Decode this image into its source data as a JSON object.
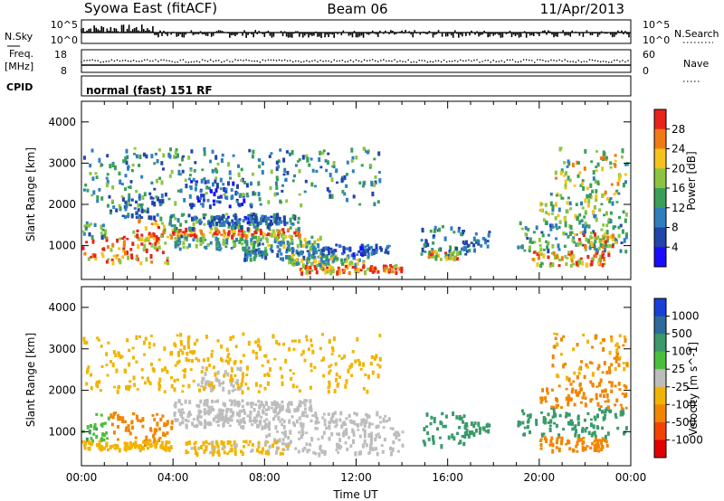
{
  "header": {
    "title": "Syowa East (fitACF)",
    "beam": "Beam 06",
    "date": "11/Apr/2013"
  },
  "top_panels": {
    "nsky_label": "N.Sky",
    "nsky_ticks": [
      "10^5",
      "10^0"
    ],
    "nsearch_label": "N.Search",
    "nsearch_ticks": [
      "10^5",
      "10^0"
    ],
    "freq_label_1": "Freq.",
    "freq_label_2": "[MHz]",
    "freq_ticks": [
      "18",
      "8"
    ],
    "nave_label": "Nave",
    "nave_ticks": [
      "60",
      "0"
    ],
    "cpid_label": "CPID",
    "cpid_text": "normal (fast) 151 RF"
  },
  "chart_data": [
    {
      "type": "heatmap",
      "panel": "power",
      "ylabel": "Slant Range [km]",
      "yticks": [
        "1000",
        "2000",
        "3000",
        "4000"
      ],
      "ylim": [
        180,
        4500
      ],
      "xlim": [
        0,
        24
      ],
      "xtick_hours": [
        0,
        4,
        8,
        12,
        16,
        20,
        24
      ],
      "colorbar": {
        "label": "Power [dB]",
        "ticks": [
          "28",
          "24",
          "20",
          "16",
          "12",
          "8",
          "4"
        ],
        "colors": [
          "#e8231b",
          "#f27a13",
          "#f7c21c",
          "#8bc53f",
          "#3aa058",
          "#2f7fbd",
          "#2145a8",
          "#1a0dff"
        ]
      },
      "bands": [
        {
          "x": [
            0.0,
            3.8
          ],
          "r": [
            620,
            1250
          ],
          "value": 26
        },
        {
          "x": [
            0.0,
            1.0
          ],
          "r": [
            1250,
            1600
          ],
          "value": 14
        },
        {
          "x": [
            2.2,
            3.6
          ],
          "r": [
            1200,
            1700
          ],
          "value": 24
        },
        {
          "x": [
            3.8,
            9.5
          ],
          "r": [
            1250,
            1450
          ],
          "value": 27
        },
        {
          "x": [
            3.8,
            9.5
          ],
          "r": [
            1450,
            1800
          ],
          "value": 11
        },
        {
          "x": [
            5.5,
            9.0
          ],
          "r": [
            1550,
            1750
          ],
          "value": 8
        },
        {
          "x": [
            4.0,
            10.5
          ],
          "r": [
            950,
            1250
          ],
          "value": 14
        },
        {
          "x": [
            7.0,
            11.0
          ],
          "r": [
            700,
            950
          ],
          "value": 10
        },
        {
          "x": [
            9.5,
            14.0
          ],
          "r": [
            380,
            560
          ],
          "value": 26
        },
        {
          "x": [
            9.0,
            12.5
          ],
          "r": [
            560,
            800
          ],
          "value": 16
        },
        {
          "x": [
            10.5,
            13.5
          ],
          "r": [
            800,
            1050
          ],
          "value": 7
        },
        {
          "x": [
            4.5,
            7.5
          ],
          "r": [
            1950,
            2650
          ],
          "value": 6
        },
        {
          "x": [
            1.0,
            3.5
          ],
          "r": [
            1700,
            2300
          ],
          "value": 9
        },
        {
          "x": [
            14.8,
            16.8
          ],
          "r": [
            700,
            1500
          ],
          "value": 10
        },
        {
          "x": [
            15.0,
            16.5
          ],
          "r": [
            700,
            900
          ],
          "value": 22
        },
        {
          "x": [
            16.5,
            17.8
          ],
          "r": [
            900,
            1400
          ],
          "value": 9
        },
        {
          "x": [
            19.0,
            23.8
          ],
          "r": [
            900,
            1600
          ],
          "value": 12
        },
        {
          "x": [
            19.5,
            23.0
          ],
          "r": [
            550,
            900
          ],
          "value": 24
        },
        {
          "x": [
            21.5,
            23.5
          ],
          "r": [
            1000,
            1350
          ],
          "value": 22
        },
        {
          "x": [
            20.0,
            23.8
          ],
          "r": [
            1600,
            2300
          ],
          "value": 16
        },
        {
          "x": [
            0.0,
            13.0
          ],
          "r": [
            2000,
            3400
          ],
          "value": 12
        },
        {
          "x": [
            20.5,
            23.8
          ],
          "r": [
            2300,
            3400
          ],
          "value": 18
        }
      ]
    },
    {
      "type": "heatmap",
      "panel": "velocity",
      "ylabel": "Slant Range [km]",
      "xlabel": "Time UT",
      "yticks": [
        "1000",
        "2000",
        "3000",
        "4000"
      ],
      "ylim": [
        180,
        4500
      ],
      "xlim": [
        0,
        24
      ],
      "xticks": [
        "00:00",
        "04:00",
        "08:00",
        "12:00",
        "16:00",
        "20:00",
        "00:00"
      ],
      "colorbar": {
        "label": "Velocity [m s^-1]",
        "ticks": [
          "1000",
          "500",
          "100",
          "25",
          "-25",
          "-100",
          "-500",
          "-1000"
        ],
        "colors": [
          "#1a3fd9",
          "#2e6b9c",
          "#3a9a6a",
          "#4bbf3b",
          "#bdbdbd",
          "#f2b400",
          "#f28500",
          "#f24400",
          "#e00000"
        ]
      },
      "bands": [
        {
          "x": [
            0.0,
            1.2
          ],
          "r": [
            800,
            1450
          ],
          "value": 80
        },
        {
          "x": [
            1.2,
            4.0
          ],
          "r": [
            700,
            1500
          ],
          "value": -250
        },
        {
          "x": [
            0.0,
            4.0
          ],
          "r": [
            600,
            800
          ],
          "value": -60
        },
        {
          "x": [
            4.0,
            13.5
          ],
          "r": [
            1150,
            1500
          ],
          "value": 0
        },
        {
          "x": [
            4.0,
            10.0
          ],
          "r": [
            1500,
            1800
          ],
          "value": 10
        },
        {
          "x": [
            5.0,
            7.0
          ],
          "r": [
            2000,
            2600
          ],
          "value": -10
        },
        {
          "x": [
            8.0,
            14.0
          ],
          "r": [
            500,
            1150
          ],
          "value": 5
        },
        {
          "x": [
            4.5,
            9.0
          ],
          "r": [
            500,
            800
          ],
          "value": -30
        },
        {
          "x": [
            14.8,
            16.8
          ],
          "r": [
            700,
            1500
          ],
          "value": 250
        },
        {
          "x": [
            16.5,
            17.8
          ],
          "r": [
            900,
            1300
          ],
          "value": 150
        },
        {
          "x": [
            19.0,
            23.8
          ],
          "r": [
            900,
            1600
          ],
          "value": 300
        },
        {
          "x": [
            20.0,
            23.0
          ],
          "r": [
            550,
            900
          ],
          "value": -150
        },
        {
          "x": [
            20.0,
            23.8
          ],
          "r": [
            1600,
            2300
          ],
          "value": -300
        },
        {
          "x": [
            0.0,
            13.0
          ],
          "r": [
            2000,
            3400
          ],
          "value": -50
        },
        {
          "x": [
            20.5,
            23.8
          ],
          "r": [
            2300,
            3400
          ],
          "value": -100
        }
      ]
    }
  ]
}
